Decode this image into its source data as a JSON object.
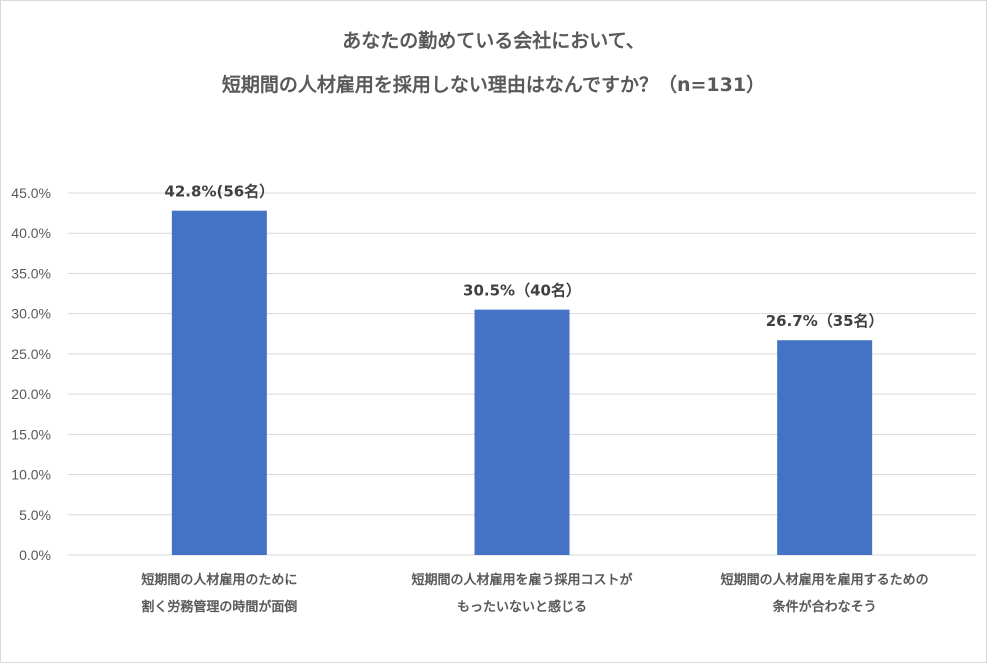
{
  "chart_data": {
    "type": "bar",
    "title": [
      "あなたの勤めている会社において、",
      "短期間の人材雇用を採用しない理由はなんですか？（n=131）"
    ],
    "categories": [
      [
        "短期間の人材雇用のために",
        "割く労務管理の時間が面倒"
      ],
      [
        "短期間の人材雇用を雇う採用コストが",
        "もったいないと感じる"
      ],
      [
        "短期間の人材雇用を雇用するための",
        "条件が合わなそう"
      ]
    ],
    "values": [
      42.8,
      30.5,
      26.7
    ],
    "data_labels": [
      "42.8%(56名）",
      "30.5%（40名）",
      "26.7%（35名）"
    ],
    "y_ticks": [
      "0.0%",
      "5.0%",
      "10.0%",
      "15.0%",
      "20.0%",
      "25.0%",
      "30.0%",
      "35.0%",
      "40.0%",
      "45.0%"
    ],
    "ylim": [
      0,
      45
    ],
    "grid": true,
    "bar_color": "#4472c4",
    "grid_color": "#d9d9d9"
  }
}
